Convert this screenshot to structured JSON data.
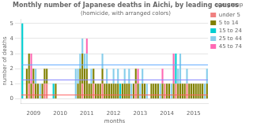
{
  "chart_data": {
    "type": "bar",
    "title": "Monthly number of Japanese deaths in Aichi, by leading causes",
    "subtitle": "(homicide, with arranged colors)",
    "x_label": "months",
    "y_label": "number of deaths",
    "legend_title": "age group",
    "legend": "upper right",
    "stacked": true,
    "grid": true,
    "categories": [
      null,
      null,
      null,
      null,
      null,
      "2009",
      null,
      null,
      null,
      null,
      null,
      null,
      null,
      null,
      null,
      null,
      null,
      "2010",
      null,
      null,
      null,
      null,
      null,
      null,
      null,
      null,
      null,
      null,
      null,
      "2011",
      null,
      null,
      null,
      null,
      null,
      null,
      null,
      null,
      null,
      null,
      null,
      "2012",
      null,
      null,
      null,
      null,
      null,
      null,
      null,
      null,
      null,
      null,
      null,
      "2013",
      null,
      null,
      null,
      null,
      null,
      null,
      null,
      null,
      null,
      null,
      null,
      "2014",
      null,
      null,
      null,
      null,
      null,
      null,
      null,
      null,
      null,
      null,
      null,
      "2015",
      null,
      null,
      null,
      null,
      null,
      null
    ],
    "series": [
      {
        "name": "under 5",
        "color": "#F08080",
        "values": [
          0,
          0,
          0,
          1,
          0,
          1,
          0,
          0,
          0,
          0,
          1,
          1,
          0,
          0,
          0,
          0,
          0,
          0,
          0,
          0,
          0,
          0,
          0,
          0,
          0,
          0,
          0,
          1,
          0,
          0,
          0,
          0,
          1,
          0,
          0,
          0,
          1,
          0,
          0,
          0,
          0,
          0,
          0,
          0,
          0,
          0,
          0,
          0,
          0,
          0,
          0,
          1,
          0,
          0,
          0,
          0,
          0,
          0,
          0,
          0,
          0,
          0,
          0,
          0,
          1,
          0,
          0,
          0,
          0,
          1,
          0,
          0,
          0,
          0,
          1,
          0,
          0,
          0,
          0,
          0,
          0,
          0,
          0,
          0
        ]
      },
      {
        "name": "5 to 14",
        "color": "#808000",
        "values": [
          0,
          0,
          2,
          2,
          1,
          1,
          1,
          1,
          0,
          1,
          1,
          1,
          0,
          0,
          0,
          1,
          0,
          0,
          0,
          0,
          0,
          0,
          0,
          0,
          0,
          1,
          2,
          2,
          2,
          2,
          1,
          1,
          1,
          1,
          1,
          1,
          1,
          1,
          1,
          1,
          1,
          1,
          1,
          1,
          0,
          1,
          1,
          1,
          1,
          0,
          1,
          1,
          1,
          0,
          1,
          1,
          0,
          0,
          1,
          1,
          1,
          1,
          0,
          1,
          0,
          1,
          1,
          0,
          1,
          0,
          1,
          1,
          1,
          1,
          0,
          1,
          1,
          1,
          1,
          1,
          1,
          1,
          0,
          1
        ]
      },
      {
        "name": "15 to 24",
        "color": "#00CED1",
        "values": [
          5,
          0,
          0,
          0,
          0,
          0,
          0,
          0,
          0,
          0,
          0,
          0,
          0,
          0,
          1,
          0,
          0,
          0,
          0,
          0,
          0,
          0,
          0,
          0,
          0,
          0,
          0,
          0,
          0,
          0,
          0,
          0,
          0,
          0,
          0,
          0,
          0,
          0,
          0,
          0,
          0,
          0,
          0,
          0,
          1,
          0,
          0,
          0,
          0,
          0,
          0,
          0,
          0,
          0,
          0,
          0,
          0,
          0,
          0,
          0,
          0,
          0,
          0,
          0,
          0,
          0,
          0,
          0,
          0,
          2,
          0,
          0,
          0,
          0,
          0,
          0,
          0,
          0,
          0,
          0,
          0,
          0,
          0,
          0
        ]
      },
      {
        "name": "25 to 44",
        "color": "#87CEEB",
        "values": [
          0,
          0,
          0,
          0,
          0,
          0,
          1,
          0,
          1,
          0,
          0,
          0,
          0,
          0,
          0,
          0,
          0,
          0,
          0,
          0,
          0,
          0,
          0,
          0,
          2,
          1,
          1,
          1,
          1,
          1,
          0,
          1,
          0,
          0,
          0,
          0,
          1,
          0,
          1,
          0,
          0,
          1,
          0,
          1,
          0,
          0,
          1,
          0,
          1,
          1,
          0,
          0,
          0,
          1,
          1,
          0,
          1,
          0,
          0,
          0,
          0,
          0,
          1,
          0,
          0,
          0,
          0,
          1,
          0,
          0,
          1,
          2,
          0,
          0,
          1,
          0,
          0,
          0,
          0,
          0,
          0,
          0,
          1,
          1
        ]
      },
      {
        "name": "45 to 74",
        "color": "#FF69B4",
        "values": [
          0,
          0,
          0,
          0,
          2,
          0,
          0,
          0,
          0,
          0,
          0,
          0,
          0,
          0,
          0,
          0,
          0,
          0,
          0,
          0,
          0,
          0,
          0,
          0,
          0,
          0,
          0,
          0,
          0,
          1,
          0,
          0,
          0,
          0,
          0,
          0,
          0,
          0,
          0,
          0,
          0,
          0,
          0,
          0,
          0,
          0,
          0,
          0,
          0,
          0,
          0,
          0,
          1,
          0,
          0,
          0,
          0,
          0,
          0,
          0,
          0,
          0,
          0,
          1,
          0,
          0,
          0,
          0,
          2,
          0,
          0,
          0,
          0,
          0,
          0,
          0,
          0,
          0,
          0,
          0,
          0,
          0,
          0,
          0
        ]
      }
    ],
    "hlines": [
      {
        "value": 0.25,
        "color": "#FF6060"
      },
      {
        "value": 1.25,
        "color": "#8888FF"
      },
      {
        "value": 2.25,
        "color": "#60AAFF"
      }
    ],
    "ylim": [
      -0.3,
      5.3
    ],
    "yticks": [
      0,
      1,
      2,
      3,
      4,
      5
    ]
  }
}
